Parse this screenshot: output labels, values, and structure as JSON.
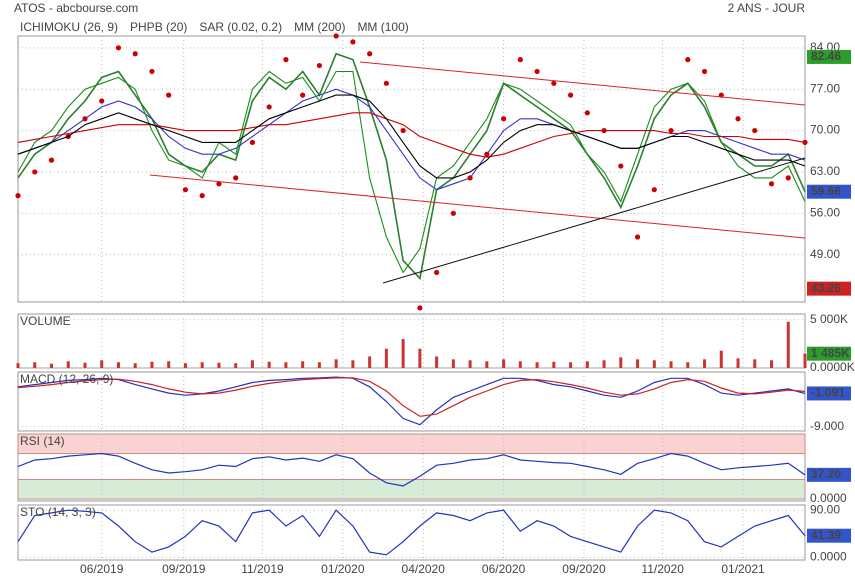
{
  "header": {
    "left": "ATOS - abcbourse.com",
    "right": "2 ANS - JOUR"
  },
  "chart_data": [
    {
      "type": "line",
      "color": "#2e7d32",
      "values": [
        62,
        66,
        68,
        72,
        75,
        79,
        80,
        76,
        72,
        66,
        64,
        63,
        66,
        65,
        75,
        79,
        77,
        80,
        76,
        83,
        82,
        74,
        65,
        48,
        45,
        60,
        62,
        66,
        70,
        78,
        76,
        74,
        72,
        70,
        66,
        62,
        57,
        64,
        72,
        76,
        78,
        74,
        68,
        66,
        64,
        64,
        66,
        59.66
      ],
      "series": [
        {
          "name": "ICHIMOKU (26, 9)",
          "color": "#3333cc",
          "values": [
            66,
            67,
            68,
            70,
            72,
            74,
            75,
            74,
            72,
            69,
            67,
            66,
            66,
            67,
            69,
            71,
            73,
            75,
            76,
            77,
            76,
            74,
            70,
            66,
            62,
            60,
            61,
            62,
            66,
            70,
            72,
            72,
            71,
            70,
            69,
            68,
            67,
            67,
            68,
            69,
            70,
            70,
            69,
            68,
            67,
            66,
            66,
            65
          ]
        },
        {
          "name": "PHPB (20)",
          "color": "#1a8c1a",
          "values": [
            63,
            68,
            70,
            74,
            77,
            78,
            79,
            77,
            70,
            65,
            64,
            62,
            68,
            66,
            77,
            80,
            78,
            79,
            75,
            80,
            80,
            62,
            52,
            46,
            50,
            62,
            64,
            68,
            72,
            78,
            77,
            75,
            73,
            71,
            66,
            63,
            58,
            66,
            74,
            77,
            78,
            75,
            68,
            64,
            62,
            62,
            64,
            58
          ]
        },
        {
          "name": "SAR (0.02, 0.2)",
          "color": "#cc0000",
          "style": "dots",
          "values": [
            59,
            63,
            65,
            69,
            72,
            75,
            84,
            83,
            80,
            76,
            60,
            59,
            61,
            62,
            68,
            74,
            82,
            76,
            81,
            86,
            85,
            83,
            78,
            70,
            40,
            46,
            56,
            62,
            66,
            72,
            82,
            80,
            78,
            76,
            73,
            70,
            64,
            52,
            60,
            70,
            82,
            80,
            76,
            72,
            70,
            61,
            62,
            68
          ]
        },
        {
          "name": "MM (200)",
          "color": "#cc0000",
          "values": [
            68,
            68.5,
            69,
            69.5,
            70,
            70.5,
            71,
            71,
            71,
            70.5,
            70,
            70,
            70,
            70,
            70.5,
            71,
            71,
            71.5,
            72,
            72.5,
            73,
            73,
            72,
            71,
            69,
            68,
            67,
            66,
            65.5,
            66,
            67,
            68,
            69,
            69.5,
            70,
            70,
            70,
            70,
            70,
            69.5,
            69.5,
            69,
            69,
            69,
            68.5,
            68.5,
            68.5,
            68
          ]
        },
        {
          "name": "MM (100)",
          "color": "#000000",
          "values": [
            66,
            67,
            68,
            69,
            71,
            72,
            73,
            72,
            71,
            70,
            69,
            68,
            68,
            68,
            70,
            72,
            73,
            74,
            75,
            76,
            76,
            75,
            72,
            68,
            64,
            62,
            62,
            63,
            65,
            68,
            70,
            71,
            71,
            70,
            69,
            68,
            67,
            67,
            68,
            69,
            69,
            68,
            67,
            66,
            65,
            65,
            65,
            64
          ]
        }
      ],
      "ylim": [
        41,
        86
      ],
      "yticks": [
        {
          "value": 84,
          "label": "84.00"
        },
        {
          "value": 77,
          "label": "77.00"
        },
        {
          "value": 70,
          "label": "70.00"
        },
        {
          "value": 63,
          "label": "63.00"
        },
        {
          "value": 56,
          "label": "56.00"
        },
        {
          "value": 49,
          "label": "49.00"
        }
      ],
      "markers": [
        {
          "value": 82.46,
          "color": "#2a9d2a"
        },
        {
          "value": 59.66,
          "color": "#3355cc"
        },
        {
          "value": 43.26,
          "color": "#cc2222"
        }
      ],
      "grid": true
    },
    {
      "type": "bar",
      "title": "VOLUME",
      "color": "#cc3333",
      "values": [
        500000,
        600000,
        450000,
        700000,
        550000,
        800000,
        600000,
        500000,
        650000,
        700000,
        500000,
        600000,
        550000,
        500000,
        800000,
        650000,
        600000,
        700000,
        600000,
        900000,
        800000,
        1200000,
        2000000,
        3000000,
        2000000,
        1200000,
        900000,
        800000,
        700000,
        900000,
        700000,
        600000,
        650000,
        600000,
        700000,
        800000,
        1100000,
        900000,
        800000,
        700000,
        600000,
        900000,
        1800000,
        1000000,
        900000,
        800000,
        4800000,
        1485000
      ],
      "ylim": [
        0,
        5600000
      ],
      "yticks": [
        {
          "value": 5000000,
          "label": "5 000K"
        },
        {
          "value": 0,
          "label": "0.0000K"
        }
      ],
      "markers": [
        {
          "value": 1485000,
          "label": "1 485K",
          "color": "#2a9d2a"
        }
      ],
      "grid": true
    },
    {
      "type": "line",
      "title": "MACD (12, 26, 9)",
      "lines": [
        {
          "color": "#2233bb",
          "values": [
            0.5,
            1,
            1.5,
            2,
            2.2,
            2.5,
            2.2,
            1,
            0,
            -1,
            -1.5,
            -1.2,
            -0.5,
            0.5,
            1.5,
            2,
            2.2,
            2.5,
            2.6,
            2.8,
            2.5,
            0.5,
            -3,
            -7,
            -8.5,
            -5,
            -2,
            -0.5,
            1,
            2.5,
            2.5,
            2,
            1,
            0.5,
            -0.5,
            -1.5,
            -2,
            -0.5,
            1.5,
            2.5,
            2.5,
            1,
            -1,
            -1.5,
            -1,
            -0.5,
            0,
            -1.091
          ]
        },
        {
          "color": "#cc2222",
          "values": [
            0.3,
            0.6,
            1,
            1.5,
            1.9,
            2.2,
            2.3,
            1.8,
            1,
            0,
            -0.8,
            -1.2,
            -1,
            -0.3,
            0.6,
            1.3,
            1.8,
            2.2,
            2.4,
            2.6,
            2.6,
            1.8,
            -0.5,
            -4,
            -6.5,
            -6,
            -4,
            -2,
            -0.5,
            1,
            2,
            2.2,
            1.7,
            1,
            0.2,
            -0.8,
            -1.5,
            -1.2,
            0,
            1.5,
            2.2,
            1.8,
            0.2,
            -1,
            -1.2,
            -0.8,
            -0.3,
            -0.6
          ]
        }
      ],
      "ylim": [
        -10,
        4
      ],
      "yticks": [
        {
          "value": -9,
          "label": "-9.000"
        }
      ],
      "markers": [
        {
          "value": -1.091,
          "color": "#3355cc"
        }
      ],
      "grid": true
    },
    {
      "type": "line",
      "title": "RSI (14)",
      "lines": [
        {
          "color": "#2233bb",
          "values": [
            50,
            60,
            62,
            66,
            68,
            70,
            66,
            55,
            45,
            40,
            42,
            45,
            52,
            50,
            62,
            65,
            60,
            63,
            58,
            68,
            62,
            40,
            25,
            20,
            35,
            52,
            55,
            60,
            62,
            68,
            60,
            58,
            56,
            55,
            50,
            45,
            38,
            55,
            62,
            70,
            66,
            55,
            45,
            48,
            50,
            52,
            55,
            37.2
          ]
        }
      ],
      "zones": [
        {
          "from": 70,
          "to": 100,
          "color": "#f9d2d2"
        },
        {
          "from": 0,
          "to": 30,
          "color": "#d6ecd6"
        }
      ],
      "ylim": [
        -3,
        100
      ],
      "yticks": [
        {
          "value": 0,
          "label": "0.0000"
        }
      ],
      "markers": [
        {
          "value": 37.2,
          "label": "37.20",
          "color": "#3355cc"
        }
      ],
      "grid": true
    },
    {
      "type": "line",
      "title": "STO (14, 3, 3)",
      "lines": [
        {
          "color": "#2233bb",
          "values": [
            30,
            80,
            85,
            90,
            88,
            85,
            60,
            30,
            10,
            20,
            40,
            70,
            60,
            30,
            85,
            90,
            60,
            80,
            40,
            90,
            60,
            10,
            5,
            30,
            60,
            85,
            80,
            70,
            85,
            90,
            50,
            70,
            60,
            40,
            30,
            20,
            10,
            60,
            90,
            85,
            70,
            30,
            20,
            40,
            60,
            70,
            80,
            41.39
          ]
        }
      ],
      "ylim": [
        -5,
        100
      ],
      "yticks": [
        {
          "value": 90,
          "label": "90.00"
        },
        {
          "value": 0,
          "label": "0.0000"
        }
      ],
      "markers": [
        {
          "value": 41.39,
          "color": "#3355cc"
        }
      ],
      "xlim": [
        0,
        47
      ],
      "xticks": [
        {
          "value": 5,
          "label": "06/2019"
        },
        {
          "value": 9.9,
          "label": "09/2019"
        },
        {
          "value": 14.6,
          "label": "11/2019"
        },
        {
          "value": 19.4,
          "label": "01/2020"
        },
        {
          "value": 24.2,
          "label": "04/2020"
        },
        {
          "value": 29,
          "label": "06/2020"
        },
        {
          "value": 33.8,
          "label": "09/2020"
        },
        {
          "value": 38.5,
          "label": "11/2020"
        },
        {
          "value": 43.3,
          "label": "01/2021"
        }
      ],
      "grid": true
    }
  ]
}
